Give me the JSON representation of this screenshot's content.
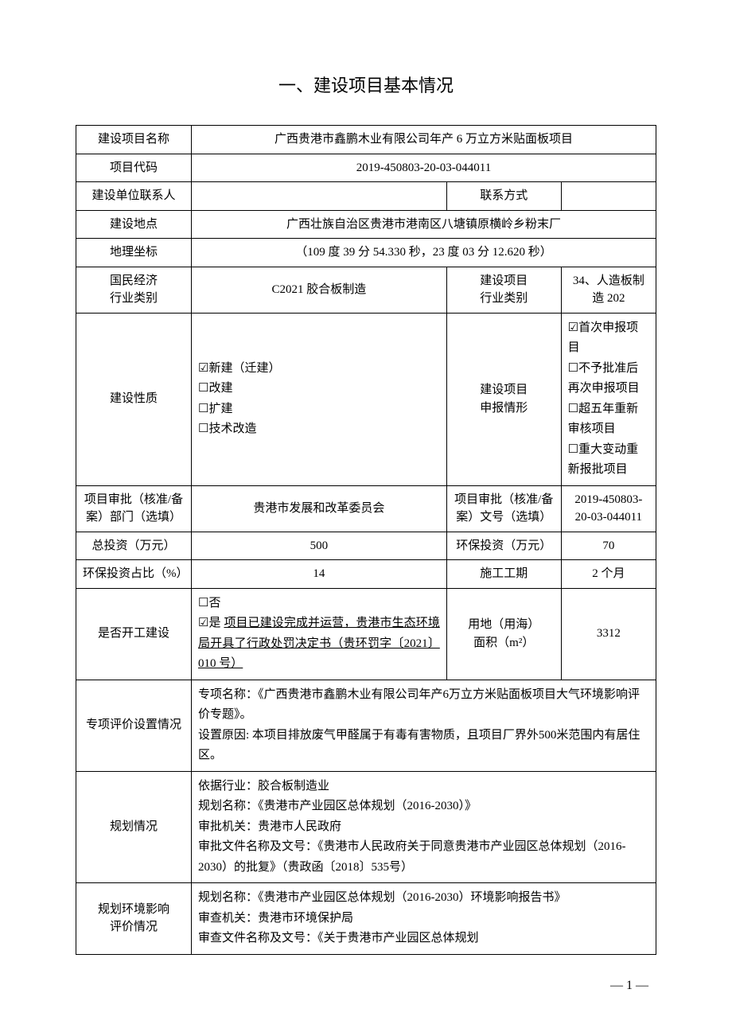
{
  "title": "一、建设项目基本情况",
  "rows": {
    "project_name_label": "建设项目名称",
    "project_name_value": "广西贵港市鑫鹏木业有限公司年产 6 万立方米贴面板项目",
    "project_code_label": "项目代码",
    "project_code_value": "2019-450803-20-03-044011",
    "contact_person_label": "建设单位联系人",
    "contact_person_value": "",
    "contact_method_label": "联系方式",
    "contact_method_value": "",
    "location_label": "建设地点",
    "location_value": "广西壮族自治区贵港市港南区八塘镇原横岭乡粉末厂",
    "coords_label": "地理坐标",
    "coords_value": "（109 度 39 分 54.330 秒，23 度 03 分 12.620 秒）",
    "econ_industry_label": "国民经济\n行业类别",
    "econ_industry_value": "C2021 胶合板制造",
    "proj_industry_label": "建设项目\n行业类别",
    "proj_industry_value": "34、人造板制造 202",
    "build_nature_label": "建设性质",
    "build_nature_opts": [
      "☑新建（迁建）",
      "☐改建",
      "☐扩建",
      "☐技术改造"
    ],
    "declare_label": "建设项目\n申报情形",
    "declare_opts": [
      "☑首次申报项目",
      "☐不予批准后再次申报项目",
      "☐超五年重新审核项目",
      "☐重大变动重新报批项目"
    ],
    "approval_dept_label": "项目审批（核准/备案）部门（选填）",
    "approval_dept_value": "贵港市发展和改革委员会",
    "approval_no_label": "项目审批（核准/备案）文号（选填）",
    "approval_no_value": "2019-450803-20-03-044011",
    "total_invest_label": "总投资（万元）",
    "total_invest_value": "500",
    "env_invest_label": "环保投资（万元）",
    "env_invest_value": "70",
    "env_ratio_label": "环保投资占比（%）",
    "env_ratio_value": "14",
    "duration_label": "施工工期",
    "duration_value": "2 个月",
    "started_label": "是否开工建设",
    "started_no": "☐否",
    "started_yes_prefix": "☑是 ",
    "started_yes_text": "项目已建设完成并运营，贵港市生态环境局开具了行政处罚决定书（贵环罚字〔2021〕010 号）",
    "land_label": "用地（用海）\n面积（m²）",
    "land_value": "3312",
    "special_label": "专项评价设置情况",
    "special_value": "专项名称：《广西贵港市鑫鹏木业有限公司年产6万立方米贴面板项目大气环境影响评价专题》。\n设置原因: 本项目排放废气甲醛属于有毒有害物质，且项目厂界外500米范围内有居住区。",
    "plan_label": "规划情况",
    "plan_value": "依据行业：胶合板制造业\n规划名称：《贵港市产业园区总体规划（2016-2030）》\n审批机关：贵港市人民政府\n审批文件名称及文号：《贵港市人民政府关于同意贵港市产业园区总体规划（2016-2030）的批复》（贵政函〔2018〕535号）",
    "plan_env_label": "规划环境影响\n评价情况",
    "plan_env_value": "规划名称：《贵港市产业园区总体规划（2016-2030）环境影响报告书》\n审查机关：贵港市环境保护局\n审查文件名称及文号：《关于贵港市产业园区总体规划"
  },
  "page_num": "— 1 —",
  "colors": {
    "text": "#000000",
    "bg": "#ffffff",
    "border": "#000000"
  }
}
